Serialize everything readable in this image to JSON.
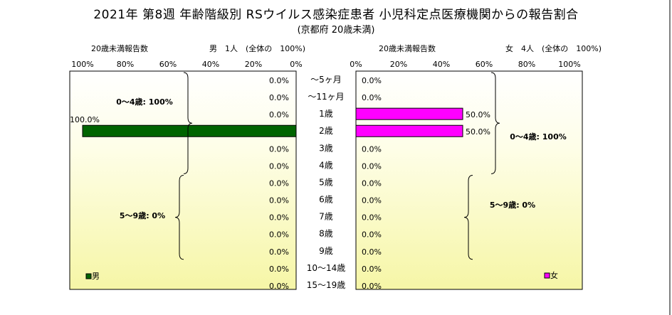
{
  "title": "2021年 第8週 年齢階級別 RSウイルス感染症患者 小児科定点医療機関からの報告割合",
  "subtitle": "(京都府 20歳未満)",
  "chart_data": {
    "type": "bar",
    "orientation": "horizontal",
    "categories": [
      "〜5ヶ月",
      "〜11ヶ月",
      "1歳",
      "2歳",
      "3歳",
      "4歳",
      "5歳",
      "6歳",
      "7歳",
      "8歳",
      "9歳",
      "10〜14歳",
      "15〜19歳"
    ],
    "panels": [
      {
        "key": "male",
        "header_left": "20歳未満報告数",
        "header_right": "男　1人　(全体の　100%)",
        "ticks": [
          "100%",
          "80%",
          "60%",
          "40%",
          "20%",
          "0%"
        ],
        "xlim": [
          0,
          100
        ],
        "direction": "reversed",
        "series": [
          {
            "name": "男",
            "color": "#006400",
            "values": [
              0,
              0,
              0,
              100,
              0,
              0,
              0,
              0,
              0,
              0,
              0,
              0,
              0
            ]
          }
        ],
        "value_labels": [
          "0.0%",
          "0.0%",
          "0.0%",
          "100.0%",
          "0.0%",
          "0.0%",
          "0.0%",
          "0.0%",
          "0.0%",
          "0.0%",
          "0.0%",
          "0.0%",
          "0.0%"
        ],
        "annotations": [
          "0〜4歳: 100%",
          "5〜9歳: 0%"
        ],
        "legend_label": "男"
      },
      {
        "key": "female",
        "header_left": "20歳未満報告数",
        "header_right": "女　4人　(全体の　100%)",
        "ticks": [
          "0%",
          "20%",
          "40%",
          "60%",
          "80%",
          "100%"
        ],
        "xlim": [
          0,
          100
        ],
        "direction": "normal",
        "series": [
          {
            "name": "女",
            "color": "#ff00ff",
            "values": [
              0,
              0,
              50,
              50,
              0,
              0,
              0,
              0,
              0,
              0,
              0,
              0,
              0
            ]
          }
        ],
        "value_labels": [
          "0.0%",
          "0.0%",
          "50.0%",
          "50.0%",
          "0.0%",
          "0.0%",
          "0.0%",
          "0.0%",
          "0.0%",
          "0.0%",
          "0.0%",
          "0.0%",
          "0.0%"
        ],
        "annotations": [
          "0〜4歳: 100%",
          "5〜9歳: 0%"
        ],
        "legend_label": "女"
      }
    ],
    "grid": false
  }
}
